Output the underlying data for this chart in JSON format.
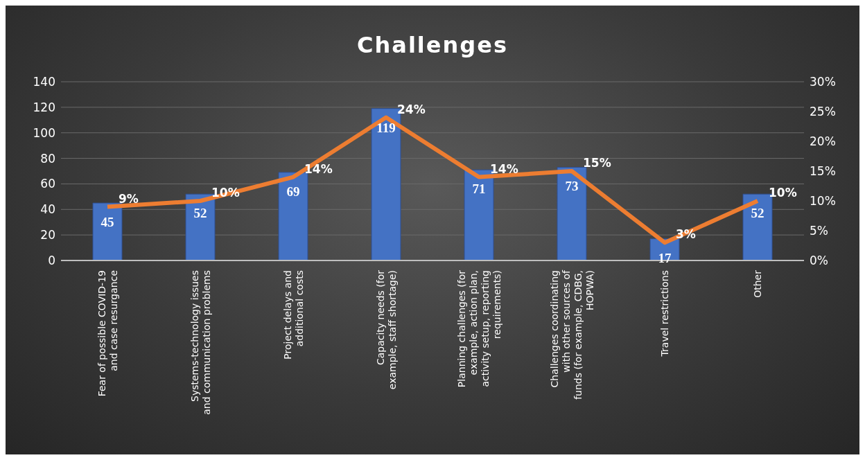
{
  "chart_data": {
    "type": "bar",
    "title": "Challenges",
    "categories": [
      "Fear of possible COVID-19 and case resurgance",
      "Systems-technology issues and communication problems",
      "Project delays and additional costs",
      "Capacity needs (for example, staff shortage)",
      "Planning challenges (for example, action plan, activity setup, reporting requirements)",
      "Challenges coordinating with other sources of funds (for example, CDBG, HOPWA)",
      "Travel restrictions",
      "Other"
    ],
    "series": [
      {
        "color": "#4472c4",
        "values": [
          45,
          52,
          69,
          119,
          71,
          73,
          17,
          52
        ]
      },
      {
        "type": "line",
        "axis": "y2",
        "color": "#ed7d31",
        "values": [
          9,
          10,
          14,
          24,
          14,
          15,
          3,
          10
        ],
        "value_labels": [
          "9%",
          "10%",
          "14%",
          "24%",
          "14%",
          "15%",
          "3%",
          "10%"
        ]
      }
    ],
    "data_labels": true,
    "ylim": [
      0,
      140
    ],
    "yticks": [
      0,
      20,
      40,
      60,
      80,
      100,
      120,
      140
    ],
    "y2lim": [
      0,
      30
    ],
    "y2ticks": [
      {
        "value": 0,
        "label": "0%"
      },
      {
        "value": 5,
        "label": "5%"
      },
      {
        "value": 10,
        "label": "10%"
      },
      {
        "value": 15,
        "label": "15%"
      },
      {
        "value": 20,
        "label": "20%"
      },
      {
        "value": 25,
        "label": "25%"
      },
      {
        "value": 30,
        "label": "30%"
      }
    ],
    "grid": "y",
    "marker": "none",
    "line_style": "solid",
    "legend": false
  }
}
